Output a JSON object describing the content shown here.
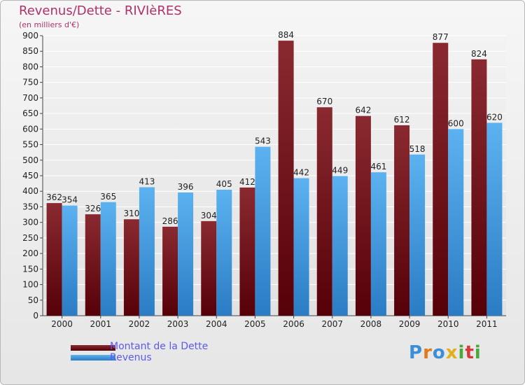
{
  "header": {
    "title": "Revenus/Dette - RIVIèRES",
    "subtitle": "(en milliers d'€)"
  },
  "legend": {
    "dette_label": "Montant de la Dette",
    "revenus_label": "Revenus"
  },
  "logo": {
    "chars": [
      "P",
      "r",
      "o",
      "x",
      "i",
      "t",
      "i"
    ]
  },
  "colors": {
    "dette": "#7a1a20",
    "revenus": "#4aa3e6",
    "title": "#b0306a",
    "legend_text": "#5a5af0"
  },
  "chart_data": {
    "type": "bar",
    "categories": [
      "2000",
      "2001",
      "2002",
      "2003",
      "2004",
      "2005",
      "2006",
      "2007",
      "2008",
      "2009",
      "2010",
      "2011"
    ],
    "series": [
      {
        "name": "Montant de la Dette",
        "values": [
          362,
          326,
          310,
          286,
          304,
          412,
          884,
          670,
          642,
          612,
          877,
          824
        ]
      },
      {
        "name": "Revenus",
        "values": [
          354,
          365,
          413,
          396,
          405,
          543,
          442,
          449,
          461,
          518,
          600,
          620
        ]
      }
    ],
    "title": "Revenus/Dette - RIVIèRES",
    "ylabel": "(en milliers d'€)",
    "ylim": [
      0,
      900
    ],
    "yticks": [
      0,
      50,
      100,
      150,
      200,
      250,
      300,
      350,
      400,
      450,
      500,
      550,
      600,
      650,
      700,
      750,
      800,
      850,
      900
    ],
    "grid": true,
    "legend_position": "bottom-left"
  }
}
